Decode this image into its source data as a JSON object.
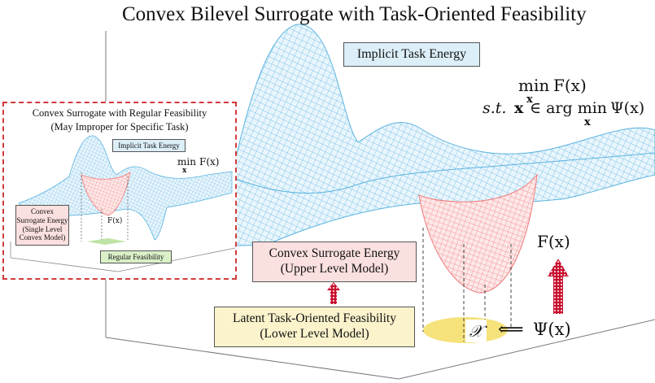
{
  "title": "Convex Bilevel Surrogate with Task-Oriented Feasibility",
  "main": {
    "implicit_task_energy": "Implicit Task Energy",
    "objective_min": "min",
    "objective_var": "x",
    "objective_fn": "F(x)",
    "constraint_prefix": "s.t.",
    "constraint_var": "x",
    "constraint_in": "∈ arg min",
    "constraint_fn": "Ψ(x)",
    "convex_surrogate_line1": "Convex Surrogate Energy",
    "convex_surrogate_line2": "(Upper Level Model)",
    "latent_line1": "Latent Task-Oriented Feasibility",
    "latent_line2": "(Lower Level Model)",
    "F_label": "F(x)",
    "X_label": "𝒳",
    "arrow_symbol": "⟸",
    "psi_label": "Ψ(x)"
  },
  "inset": {
    "title_line1": "Convex Surrogate with Regular Feasibility",
    "title_line2": "(May Improper for Specific Task)",
    "implicit_task_energy": "Implicit Task Energy",
    "min": "min",
    "min_var": "x",
    "min_fn": "F(x)",
    "convex_line1": "Convex",
    "convex_line2": "Surrogate Energy",
    "convex_line3": "(Single Level",
    "convex_line4": "Convex Model)",
    "F_label": "F(x)",
    "regular_feasibility": "Regular Feasibility"
  },
  "colors": {
    "mesh_blue": "#5ab4e0",
    "mesh_pink": "#f07a7a",
    "dashed_red": "#d13a3a",
    "arrow_red": "#c8102e",
    "ellipse_yellow": "#f5e27a"
  }
}
